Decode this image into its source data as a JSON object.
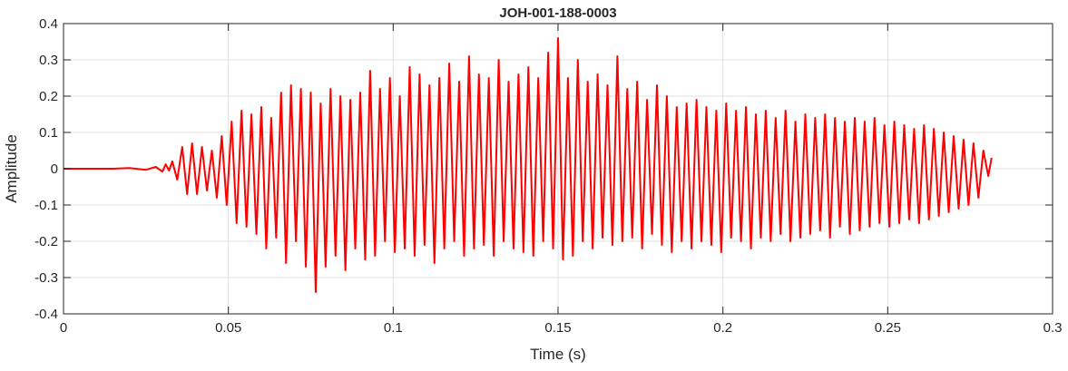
{
  "chart_data": {
    "type": "line",
    "title": "JOH-001-188-0003",
    "xlabel": "Time (s)",
    "ylabel": "Amplitude",
    "xlim": [
      0,
      0.3
    ],
    "ylim": [
      -0.4,
      0.4
    ],
    "grid": true,
    "x_ticks": [
      0,
      0.05,
      0.1,
      0.15,
      0.2,
      0.25,
      0.3
    ],
    "x_tick_labels": [
      "0",
      "0.05",
      "0.1",
      "0.15",
      "0.2",
      "0.25",
      "0.3"
    ],
    "y_ticks": [
      -0.4,
      -0.3,
      -0.2,
      -0.1,
      0,
      0.1,
      0.2,
      0.3,
      0.4
    ],
    "y_tick_labels": [
      "-0.4",
      "-0.3",
      "-0.2",
      "-0.1",
      "0",
      "0.1",
      "0.2",
      "0.3",
      "0.4"
    ],
    "series": [
      {
        "color": "#ff0000",
        "x": [
          0,
          0.005,
          0.01,
          0.015,
          0.02,
          0.025,
          0.028,
          0.03,
          0.031,
          0.032,
          0.033,
          0.0345,
          0.036,
          0.0375,
          0.039,
          0.0405,
          0.042,
          0.0435,
          0.045,
          0.0465,
          0.048,
          0.0495,
          0.051,
          0.0525,
          0.054,
          0.0555,
          0.057,
          0.0585,
          0.06,
          0.0615,
          0.063,
          0.0645,
          0.066,
          0.0675,
          0.069,
          0.0705,
          0.072,
          0.0735,
          0.075,
          0.0765,
          0.078,
          0.0795,
          0.081,
          0.0825,
          0.084,
          0.0855,
          0.087,
          0.0885,
          0.09,
          0.0915,
          0.093,
          0.0945,
          0.096,
          0.0975,
          0.099,
          0.1005,
          0.102,
          0.1035,
          0.105,
          0.1065,
          0.108,
          0.1095,
          0.111,
          0.1125,
          0.114,
          0.1155,
          0.117,
          0.1185,
          0.12,
          0.1215,
          0.123,
          0.1245,
          0.126,
          0.1275,
          0.129,
          0.1305,
          0.132,
          0.1335,
          0.135,
          0.1365,
          0.138,
          0.1395,
          0.141,
          0.1425,
          0.144,
          0.1455,
          0.147,
          0.1485,
          0.15,
          0.1515,
          0.153,
          0.1545,
          0.156,
          0.1575,
          0.159,
          0.1605,
          0.162,
          0.1635,
          0.165,
          0.1665,
          0.168,
          0.1695,
          0.171,
          0.1725,
          0.174,
          0.1755,
          0.177,
          0.1785,
          0.18,
          0.1815,
          0.183,
          0.1845,
          0.186,
          0.1875,
          0.189,
          0.1905,
          0.192,
          0.1935,
          0.195,
          0.1965,
          0.198,
          0.1995,
          0.201,
          0.2025,
          0.204,
          0.2055,
          0.207,
          0.2085,
          0.21,
          0.2115,
          0.213,
          0.2145,
          0.216,
          0.2175,
          0.219,
          0.2205,
          0.222,
          0.2235,
          0.225,
          0.2265,
          0.228,
          0.2295,
          0.231,
          0.2325,
          0.234,
          0.2355,
          0.237,
          0.2385,
          0.24,
          0.2415,
          0.243,
          0.2445,
          0.246,
          0.2475,
          0.249,
          0.2505,
          0.252,
          0.2535,
          0.255,
          0.2565,
          0.258,
          0.2595,
          0.261,
          0.2625,
          0.264,
          0.2655,
          0.267,
          0.2685,
          0.27,
          0.2715,
          0.273,
          0.2745,
          0.276,
          0.2775,
          0.279,
          0.2805,
          0.2815
        ],
        "y": [
          0,
          0,
          0,
          0,
          0.002,
          -0.003,
          0.005,
          -0.008,
          0.012,
          -0.005,
          0.02,
          -0.03,
          0.06,
          -0.07,
          0.07,
          -0.07,
          0.06,
          -0.06,
          0.05,
          -0.08,
          0.09,
          -0.1,
          0.13,
          -0.15,
          0.16,
          -0.16,
          0.15,
          -0.18,
          0.17,
          -0.22,
          0.14,
          -0.19,
          0.21,
          -0.26,
          0.23,
          -0.2,
          0.22,
          -0.27,
          0.21,
          -0.34,
          0.18,
          -0.27,
          0.22,
          -0.24,
          0.2,
          -0.28,
          0.19,
          -0.22,
          0.21,
          -0.25,
          0.27,
          -0.24,
          0.22,
          -0.2,
          0.25,
          -0.23,
          0.2,
          -0.22,
          0.28,
          -0.24,
          0.26,
          -0.21,
          0.23,
          -0.26,
          0.25,
          -0.22,
          0.29,
          -0.2,
          0.24,
          -0.24,
          0.31,
          -0.22,
          0.26,
          -0.21,
          0.25,
          -0.24,
          0.3,
          -0.2,
          0.24,
          -0.22,
          0.26,
          -0.23,
          0.28,
          -0.24,
          0.25,
          -0.2,
          0.32,
          -0.22,
          0.36,
          -0.25,
          0.25,
          -0.24,
          0.3,
          -0.2,
          0.24,
          -0.22,
          0.26,
          -0.19,
          0.23,
          -0.21,
          0.31,
          -0.2,
          0.22,
          -0.19,
          0.24,
          -0.22,
          0.19,
          -0.18,
          0.23,
          -0.21,
          0.2,
          -0.23,
          0.17,
          -0.2,
          0.18,
          -0.22,
          0.19,
          -0.2,
          0.17,
          -0.21,
          0.16,
          -0.23,
          0.18,
          -0.19,
          0.16,
          -0.2,
          0.17,
          -0.22,
          0.15,
          -0.19,
          0.16,
          -0.2,
          0.14,
          -0.18,
          0.16,
          -0.2,
          0.13,
          -0.19,
          0.15,
          -0.18,
          0.14,
          -0.17,
          0.15,
          -0.19,
          0.14,
          -0.16,
          0.13,
          -0.18,
          0.14,
          -0.17,
          0.13,
          -0.16,
          0.14,
          -0.15,
          0.12,
          -0.16,
          0.13,
          -0.15,
          0.12,
          -0.14,
          0.11,
          -0.15,
          0.12,
          -0.14,
          0.11,
          -0.13,
          0.1,
          -0.12,
          0.09,
          -0.11,
          0.08,
          -0.1,
          0.07,
          -0.08,
          0.05,
          -0.02,
          0.03
        ]
      }
    ]
  }
}
